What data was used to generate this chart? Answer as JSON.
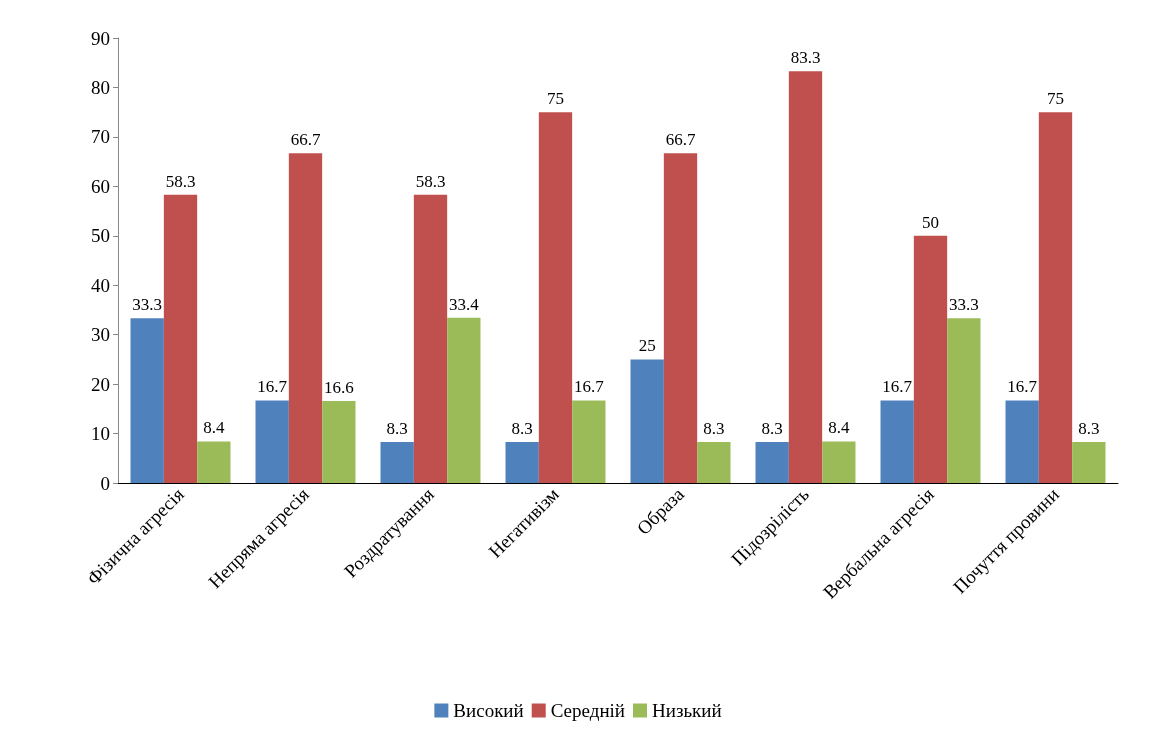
{
  "chart_data": {
    "type": "bar",
    "categories": [
      "Фізична агресія",
      "Непряма агресія",
      "Роздратування",
      "Негативізм",
      "Образа",
      "Підозрілість",
      "Вербальна агресія",
      "Почуття провини"
    ],
    "series": [
      {
        "name": "Високий",
        "color": "#4f81bd",
        "values": [
          33.3,
          16.7,
          8.3,
          8.3,
          25,
          8.3,
          16.7,
          16.7
        ]
      },
      {
        "name": "Середній",
        "color": "#c0504d",
        "values": [
          58.3,
          66.7,
          58.3,
          75,
          66.7,
          83.3,
          50,
          75
        ]
      },
      {
        "name": "Низький",
        "color": "#9bbb59",
        "values": [
          8.4,
          16.6,
          33.4,
          16.7,
          8.3,
          8.4,
          33.3,
          8.3
        ]
      }
    ],
    "ylim": [
      0,
      90
    ],
    "yticks": [
      0,
      10,
      20,
      30,
      40,
      50,
      60,
      70,
      80,
      90
    ],
    "grid": false,
    "legend": "bottom",
    "data_labels": true
  }
}
